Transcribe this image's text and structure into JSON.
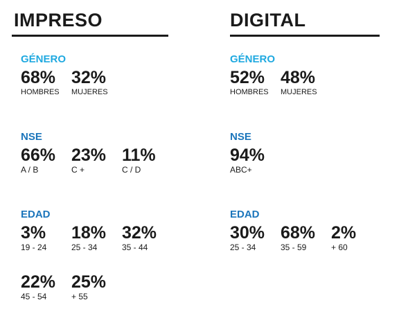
{
  "impreso": {
    "title": "IMPRESO",
    "genero": {
      "label": "GÉNERO",
      "stats": [
        {
          "pct": "68%",
          "label": "HOMBRES"
        },
        {
          "pct": "32%",
          "label": "MUJERES"
        }
      ]
    },
    "nse": {
      "label": "NSE",
      "stats": [
        {
          "pct": "66%",
          "label": "A / B"
        },
        {
          "pct": "23%",
          "label": "C +"
        },
        {
          "pct": "11%",
          "label": "C / D"
        }
      ]
    },
    "edad": {
      "label": "EDAD",
      "stats": [
        {
          "pct": "3%",
          "label": "19 - 24"
        },
        {
          "pct": "18%",
          "label": "25 - 34"
        },
        {
          "pct": "32%",
          "label": "35 - 44"
        },
        {
          "pct": "22%",
          "label": "45 - 54"
        },
        {
          "pct": "25%",
          "label": "+ 55"
        }
      ]
    }
  },
  "digital": {
    "title": "DIGITAL",
    "genero": {
      "label": "GÉNERO",
      "stats": [
        {
          "pct": "52%",
          "label": "HOMBRES"
        },
        {
          "pct": "48%",
          "label": "MUJERES"
        }
      ]
    },
    "nse": {
      "label": "NSE",
      "stats": [
        {
          "pct": "94%",
          "label": "ABC+"
        }
      ]
    },
    "edad": {
      "label": "EDAD",
      "stats": [
        {
          "pct": "30%",
          "label": "25 - 34"
        },
        {
          "pct": "68%",
          "label": "35 - 59"
        },
        {
          "pct": "2%",
          "label": "+ 60"
        }
      ]
    }
  }
}
